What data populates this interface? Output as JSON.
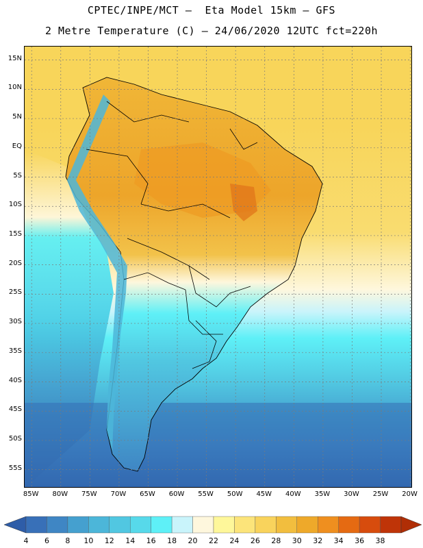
{
  "title": {
    "line1": "CPTEC/INPE/MCT –  Eta Model 15km – GFS",
    "line2": "2 Metre Temperature (C) – 24/06/2020 12UTC fct=220h"
  },
  "axes": {
    "lat_labels": [
      "15N",
      "10N",
      "5N",
      "EQ",
      "5S",
      "10S",
      "15S",
      "20S",
      "25S",
      "30S",
      "35S",
      "40S",
      "45S",
      "50S",
      "55S"
    ],
    "lat_values": [
      15,
      10,
      5,
      0,
      -5,
      -10,
      -15,
      -20,
      -25,
      -30,
      -35,
      -40,
      -45,
      -50,
      -55
    ],
    "lon_labels": [
      "85W",
      "80W",
      "75W",
      "70W",
      "65W",
      "60W",
      "55W",
      "50W",
      "45W",
      "40W",
      "35W",
      "30W",
      "25W",
      "20W"
    ],
    "lon_values": [
      -85,
      -80,
      -75,
      -70,
      -65,
      -60,
      -55,
      -50,
      -45,
      -40,
      -35,
      -30,
      -25,
      -20
    ],
    "lat_range": [
      -58.2,
      17.3
    ],
    "lon_range": [
      -86.2,
      -19.6
    ]
  },
  "colorbar": {
    "labels": [
      "4",
      "6",
      "8",
      "10",
      "12",
      "14",
      "16",
      "18",
      "20",
      "22",
      "24",
      "26",
      "28",
      "30",
      "32",
      "34",
      "36",
      "38"
    ],
    "colors": [
      "#3870b8",
      "#3f86c4",
      "#45a0cf",
      "#4cb6d9",
      "#51c7e1",
      "#57d9ea",
      "#5ef0f7",
      "#c9f4fb",
      "#fef7dd",
      "#fef79a",
      "#fce47a",
      "#f9d35c",
      "#f2be3e",
      "#eea92a",
      "#ef8f1f",
      "#e56a12",
      "#d74c0d",
      "#bf3408"
    ],
    "low_arrow_color": "#2e5da8",
    "high_arrow_color": "#b02e06"
  },
  "map_colors": {
    "ocean_tropical": "#f8d55a",
    "ocean_south": "#2f5fa8",
    "grid": "#7a7a7a"
  }
}
